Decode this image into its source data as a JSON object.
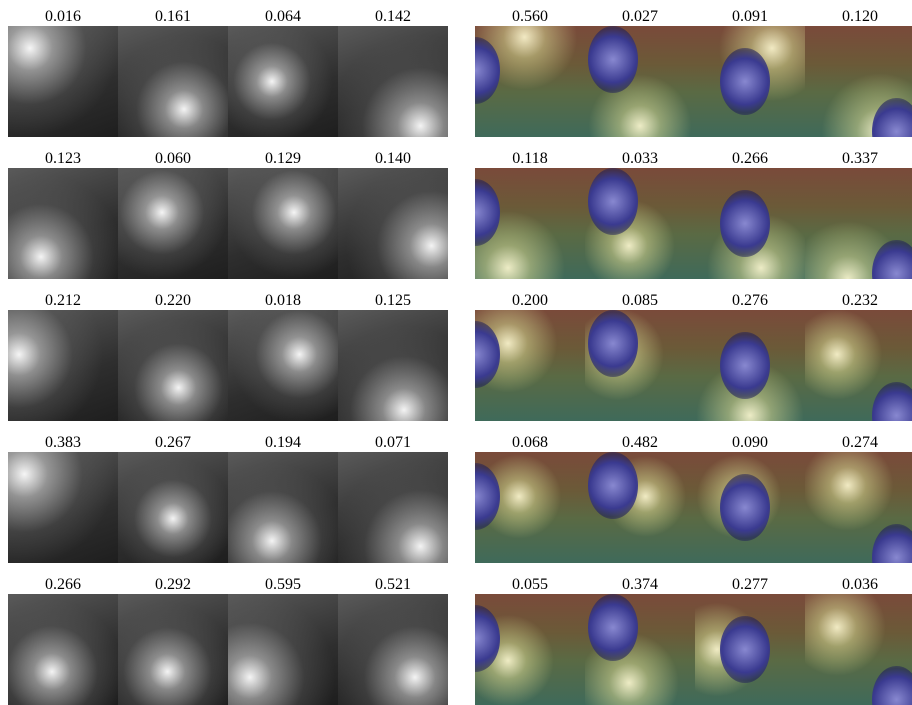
{
  "left": {
    "rows": [
      [
        "0.016",
        "0.161",
        "0.064",
        "0.142"
      ],
      [
        "0.123",
        "0.060",
        "0.129",
        "0.140"
      ],
      [
        "0.212",
        "0.220",
        "0.018",
        "0.125"
      ],
      [
        "0.383",
        "0.267",
        "0.194",
        "0.071"
      ],
      [
        "0.266",
        "0.292",
        "0.595",
        "0.521"
      ]
    ]
  },
  "right": {
    "rows": [
      [
        "0.560",
        "0.027",
        "0.091",
        "0.120"
      ],
      [
        "0.118",
        "0.033",
        "0.266",
        "0.337"
      ],
      [
        "0.200",
        "0.085",
        "0.276",
        "0.232"
      ],
      [
        "0.068",
        "0.482",
        "0.090",
        "0.274"
      ],
      [
        "0.055",
        "0.374",
        "0.277",
        "0.036"
      ]
    ]
  }
}
